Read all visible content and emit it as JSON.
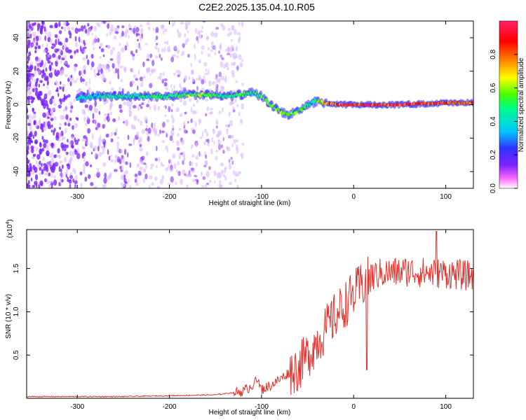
{
  "title": "C2E2.2025.135.04.10.R05",
  "colors": {
    "snr_line": "#e8302a",
    "spectral_points": "#7a22ff",
    "colorbar": [
      "#ffffff",
      "#ff66ff",
      "#7a22ff",
      "#3333ff",
      "#00c8ff",
      "#00ff88",
      "#44ff00",
      "#ffff00",
      "#ff8800",
      "#ff0000",
      "#ff2266"
    ]
  },
  "chart_data": [
    {
      "type": "heatmap",
      "xlabel": "Height of straight line (km)",
      "ylabel": "Frequency (Hz)",
      "xlim": [
        -355,
        130
      ],
      "ylim": [
        -50,
        50
      ],
      "xticks": [
        "-300",
        "-200",
        "-100",
        "0",
        "100"
      ],
      "xtick_values": [
        -300,
        -200,
        -100,
        0,
        100
      ],
      "yticks": [
        "-40",
        "-20",
        "0",
        "20",
        "40"
      ],
      "ytick_values": [
        -40,
        -20,
        0,
        20,
        40
      ],
      "colorbar": {
        "label": "Normalized spectral amplitude",
        "range": [
          0,
          1
        ],
        "ticks": [
          "0.0",
          "0.2",
          "0.4",
          "0.6",
          "0.8"
        ],
        "tick_values": [
          0.0,
          0.2,
          0.4,
          0.6,
          0.8
        ]
      },
      "ridge": {
        "x": [
          -300,
          -280,
          -260,
          -240,
          -220,
          -200,
          -180,
          -160,
          -140,
          -120,
          -110,
          -100,
          -90,
          -80,
          -70,
          -60,
          -50,
          -40,
          -30,
          -20,
          0,
          50,
          100,
          130
        ],
        "y": [
          4,
          5,
          5,
          5,
          5,
          5,
          6,
          6,
          5,
          6,
          7,
          5,
          0,
          -4,
          -6,
          -4,
          0,
          2,
          1,
          0,
          0,
          0,
          1,
          1
        ],
        "peak_amplitude": [
          0.4,
          0.45,
          0.5,
          0.5,
          0.55,
          0.5,
          0.6,
          0.6,
          0.5,
          0.55,
          0.5,
          0.55,
          0.6,
          0.6,
          0.55,
          0.6,
          0.5,
          0.55,
          0.8,
          0.9,
          0.95,
          0.95,
          0.9,
          0.85
        ]
      },
      "noise_region_x": [
        -355,
        -140
      ]
    },
    {
      "type": "line",
      "xlabel": "Height of straight line (km)",
      "ylabel": "SNR (10 * v/v)",
      "y_multiplier": "(x10",
      "y_multiplier_exp": "4",
      "xlim": [
        -355,
        130
      ],
      "ylim": [
        0,
        1.95
      ],
      "xticks": [
        "-300",
        "-200",
        "-100",
        "0",
        "100"
      ],
      "xtick_values": [
        -300,
        -200,
        -100,
        0,
        100
      ],
      "yticks": [
        "0.5",
        "1.0",
        "1.5"
      ],
      "ytick_values": [
        0.5,
        1.0,
        1.5
      ],
      "series": [
        {
          "x": [
            -355,
            -300,
            -250,
            -200,
            -150,
            -120,
            -110,
            -105,
            -100,
            -90,
            -80,
            -70,
            -60,
            -50,
            -40,
            -30,
            -20,
            -10,
            0,
            10,
            20,
            30,
            40,
            60,
            80,
            100,
            120,
            130
          ],
          "y": [
            0.02,
            0.02,
            0.02,
            0.03,
            0.04,
            0.08,
            0.15,
            0.22,
            0.1,
            0.15,
            0.22,
            0.3,
            0.35,
            0.5,
            0.65,
            0.8,
            0.95,
            1.08,
            1.2,
            1.32,
            1.4,
            1.45,
            1.45,
            1.47,
            1.45,
            1.45,
            1.42,
            1.42
          ]
        }
      ]
    }
  ]
}
